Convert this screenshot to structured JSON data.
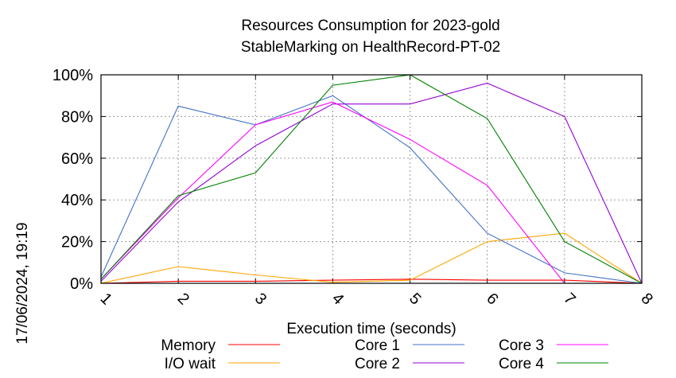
{
  "timestamp": "17/06/2024, 19:19",
  "chart_data": {
    "type": "line",
    "title": [
      "Resources Consumption for 2023-gold",
      "StableMarking on HealthRecord-PT-02"
    ],
    "xlabel": "Execution time (seconds)",
    "ylabel": "",
    "x": [
      1,
      2,
      3,
      4,
      5,
      6,
      7,
      8
    ],
    "xlim": [
      1,
      8
    ],
    "ylim": [
      0,
      100
    ],
    "yticks": [
      "0%",
      "20%",
      "40%",
      "60%",
      "80%",
      "100%"
    ],
    "xticks": [
      "1",
      "2",
      "3",
      "4",
      "5",
      "6",
      "7",
      "8"
    ],
    "grid": true,
    "legend_position": "bottom",
    "series": [
      {
        "name": "Memory",
        "color": "#ff0000",
        "values": [
          0,
          1,
          1,
          1.5,
          2,
          1.5,
          1.5,
          0
        ]
      },
      {
        "name": "I/O wait",
        "color": "#ffa500",
        "values": [
          0,
          8,
          4,
          0.5,
          1.5,
          20,
          24,
          0
        ]
      },
      {
        "name": "Core 1",
        "color": "#4472c4",
        "values": [
          3,
          85,
          76,
          90,
          65,
          24,
          5,
          0
        ]
      },
      {
        "name": "Core 2",
        "color": "#9400d3",
        "values": [
          1,
          39,
          66,
          86,
          86,
          96,
          80,
          0
        ]
      },
      {
        "name": "Core 3",
        "color": "#ff00ff",
        "values": [
          2,
          41,
          76,
          87,
          69,
          47,
          0,
          0
        ]
      },
      {
        "name": "Core 4",
        "color": "#008000",
        "values": [
          2,
          42,
          53,
          95,
          100,
          79,
          20,
          0
        ]
      }
    ]
  }
}
